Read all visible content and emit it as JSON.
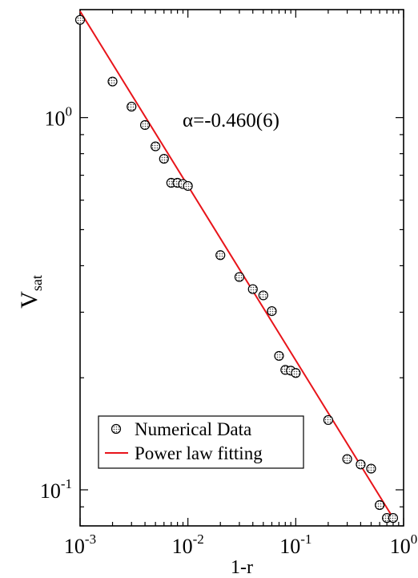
{
  "chart_data": {
    "type": "scatter",
    "xscale": "log",
    "yscale": "log",
    "xlim": [
      0.001,
      1
    ],
    "ylim": [
      0.08,
      1.95
    ],
    "xlabel": "1-r",
    "ylabel": {
      "main": "V",
      "sub": "sat"
    },
    "x_ticks": [
      {
        "value": 0.001,
        "base": "10",
        "exp": "-3"
      },
      {
        "value": 0.01,
        "base": "10",
        "exp": "-2"
      },
      {
        "value": 0.1,
        "base": "10",
        "exp": "-1"
      },
      {
        "value": 1,
        "base": "10",
        "exp": "0"
      }
    ],
    "y_ticks": [
      {
        "value": 0.1,
        "base": "10",
        "exp": "-1"
      },
      {
        "value": 1,
        "base": "10",
        "exp": "0"
      }
    ],
    "annotation": "α=-0.460(6)",
    "grid": false,
    "legend_position": "bottom-left",
    "series": [
      {
        "name": "Numerical Data",
        "kind": "markers",
        "color": "#000000",
        "x": [
          0.001,
          0.002,
          0.003,
          0.004,
          0.005,
          0.006,
          0.007,
          0.008,
          0.009,
          0.01,
          0.02,
          0.03,
          0.04,
          0.05,
          0.06,
          0.07,
          0.08,
          0.09,
          0.1,
          0.2,
          0.3,
          0.4,
          0.5,
          0.6,
          0.7,
          0.8
        ],
        "y": [
          1.83,
          1.25,
          1.07,
          0.955,
          0.837,
          0.775,
          0.668,
          0.668,
          0.663,
          0.655,
          0.427,
          0.373,
          0.346,
          0.333,
          0.302,
          0.229,
          0.21,
          0.209,
          0.206,
          0.154,
          0.121,
          0.117,
          0.114,
          0.091,
          0.084,
          0.084
        ]
      },
      {
        "name": "Power law fitting",
        "kind": "line",
        "color": "#e8141a",
        "slope": -0.46,
        "x": [
          0.001,
          0.8
        ],
        "y": [
          1.93,
          0.084
        ]
      }
    ]
  }
}
